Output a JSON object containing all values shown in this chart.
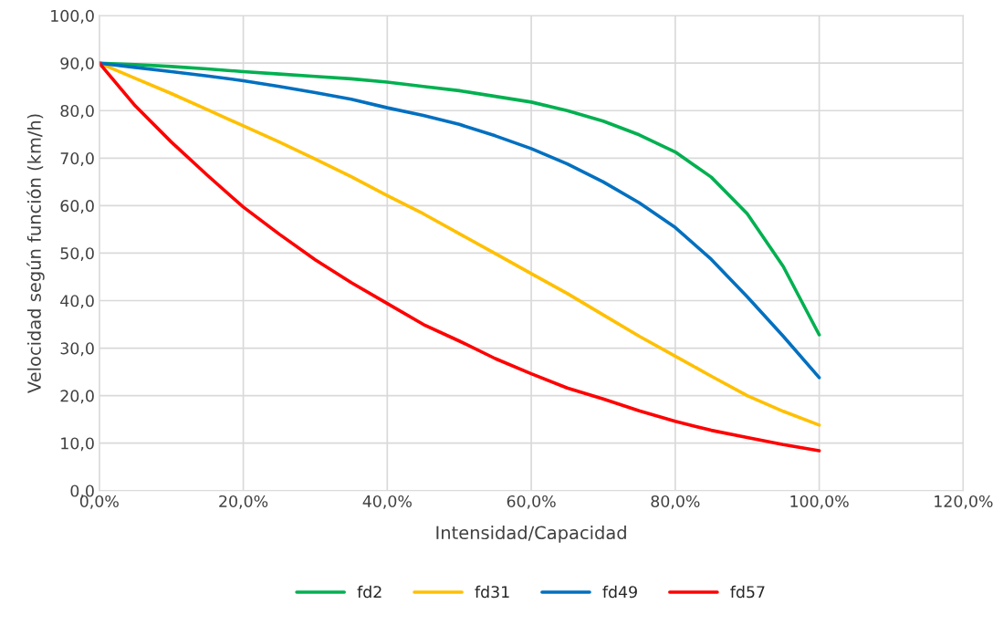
{
  "chart_data": {
    "type": "line",
    "xlabel": "Intensidad/Capacidad",
    "ylabel": "Velocidad según función (km/h)",
    "x": [
      0,
      5,
      10,
      15,
      20,
      25,
      30,
      35,
      40,
      45,
      50,
      55,
      60,
      65,
      70,
      75,
      80,
      85,
      90,
      95,
      100
    ],
    "series": [
      {
        "name": "fd2",
        "color": "#00b050",
        "values": [
          90,
          89.7,
          89.3,
          88.8,
          88.2,
          87.7,
          87.2,
          86.7,
          86.0,
          85.1,
          84.2,
          83.0,
          81.8,
          80.0,
          77.8,
          74.9,
          71.3,
          66.0,
          58.3,
          47.2,
          32.8
        ]
      },
      {
        "name": "fd31",
        "color": "#ffc000",
        "values": [
          90,
          86.8,
          83.6,
          80.2,
          76.8,
          73.4,
          69.8,
          66.1,
          62.1,
          58.3,
          54.1,
          49.9,
          45.7,
          41.5,
          37.0,
          32.5,
          28.3,
          24.1,
          20.0,
          16.7,
          13.8
        ]
      },
      {
        "name": "fd49",
        "color": "#0070c0",
        "values": [
          90,
          89.1,
          88.2,
          87.3,
          86.3,
          85.1,
          83.8,
          82.4,
          80.6,
          79.0,
          77.1,
          74.7,
          72.0,
          68.8,
          65.0,
          60.6,
          55.4,
          48.7,
          40.8,
          32.5,
          23.8
        ]
      },
      {
        "name": "fd57",
        "color": "#ff0000",
        "values": [
          90,
          81.0,
          73.4,
          66.4,
          59.7,
          54.0,
          48.6,
          43.8,
          39.4,
          35.0,
          31.5,
          27.8,
          24.6,
          21.6,
          19.3,
          16.8,
          14.6,
          12.7,
          11.2,
          9.7,
          8.4
        ]
      }
    ],
    "xlim": [
      0,
      120
    ],
    "xticks": [
      {
        "value": 0,
        "label": "0,0%"
      },
      {
        "value": 20,
        "label": "20,0%"
      },
      {
        "value": 40,
        "label": "40,0%"
      },
      {
        "value": 60,
        "label": "60,0%"
      },
      {
        "value": 80,
        "label": "80,0%"
      },
      {
        "value": 100,
        "label": "100,0%"
      },
      {
        "value": 120,
        "label": "120,0%"
      }
    ],
    "ylim": [
      0,
      100
    ],
    "yticks": [
      {
        "value": 0,
        "label": "0,0"
      },
      {
        "value": 10,
        "label": "10,0"
      },
      {
        "value": 20,
        "label": "20,0"
      },
      {
        "value": 30,
        "label": "30,0"
      },
      {
        "value": 40,
        "label": "40,0"
      },
      {
        "value": 50,
        "label": "50,0"
      },
      {
        "value": 60,
        "label": "60,0"
      },
      {
        "value": 70,
        "label": "70,0"
      },
      {
        "value": 80,
        "label": "80,0"
      },
      {
        "value": 90,
        "label": "90,0"
      },
      {
        "value": 100,
        "label": "100,0"
      }
    ],
    "grid": true,
    "legend": "bottom",
    "marker": "none",
    "line_style": "solid"
  }
}
